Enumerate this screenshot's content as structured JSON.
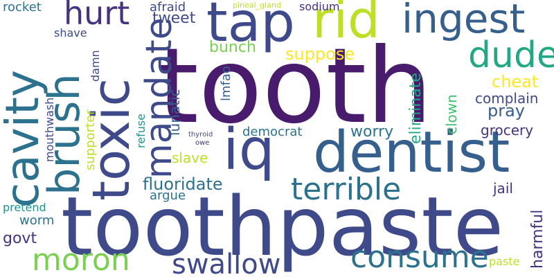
{
  "palette": {
    "dark_purple": "#481b6d",
    "indigo": "#46327e",
    "slate_blue": "#3e4a89",
    "steel_blue": "#355f8d",
    "teal_blue": "#2c728e",
    "teal": "#21918c",
    "sea_green": "#22a884",
    "green": "#44bf70",
    "light_green": "#7ad151",
    "lime": "#bddf26",
    "yellow": "#fde725"
  },
  "words": [
    {
      "text": "tooth",
      "color": "#481b6d"
    },
    {
      "text": "toothpaste",
      "color": "#3e4a89"
    },
    {
      "text": "iq",
      "color": "#3e4a89"
    },
    {
      "text": "dentist",
      "color": "#355f8d"
    },
    {
      "text": "tap",
      "color": "#3e4a89"
    },
    {
      "text": "rid",
      "color": "#bddf26"
    },
    {
      "text": "ingest",
      "color": "#355f8d"
    },
    {
      "text": "cavity",
      "color": "#2c728e"
    },
    {
      "text": "brush",
      "color": "#2c728e"
    },
    {
      "text": "toxic",
      "color": "#3e4a89"
    },
    {
      "text": "mandate",
      "color": "#3e4a89"
    },
    {
      "text": "hurt",
      "color": "#46327e"
    },
    {
      "text": "dude",
      "color": "#22a884"
    },
    {
      "text": "terrible",
      "color": "#2c728e"
    },
    {
      "text": "consume",
      "color": "#2c728e"
    },
    {
      "text": "moron",
      "color": "#7ad151"
    },
    {
      "text": "swallow",
      "color": "#3e4a89"
    },
    {
      "text": "fluoridate",
      "color": "#2c728e"
    },
    {
      "text": "tweet",
      "color": "#3e4a89"
    },
    {
      "text": "afraid",
      "color": "#3e4a89"
    },
    {
      "text": "bunch",
      "color": "#7ad151"
    },
    {
      "text": "suppose",
      "color": "#fde725"
    },
    {
      "text": "cheat",
      "color": "#fde725"
    },
    {
      "text": "complain",
      "color": "#3e4a89"
    },
    {
      "text": "pray",
      "color": "#355f8d"
    },
    {
      "text": "grocery",
      "color": "#46327e"
    },
    {
      "text": "worry",
      "color": "#2c728e"
    },
    {
      "text": "democrat",
      "color": "#2c728e"
    },
    {
      "text": "eliminate",
      "color": "#22a884"
    },
    {
      "text": "clown",
      "color": "#44bf70"
    },
    {
      "text": "lmfao",
      "color": "#355f8d"
    },
    {
      "text": "lunatic",
      "color": "#355f8d"
    },
    {
      "text": "slave",
      "color": "#bddf26"
    },
    {
      "text": "argue",
      "color": "#2c728e"
    },
    {
      "text": "jail",
      "color": "#46327e"
    },
    {
      "text": "harmful",
      "color": "#46327e"
    },
    {
      "text": "paste",
      "color": "#bddf26"
    },
    {
      "text": "govt",
      "color": "#46327e"
    },
    {
      "text": "worm",
      "color": "#2c728e"
    },
    {
      "text": "pretend",
      "color": "#21918c"
    },
    {
      "text": "rocket",
      "color": "#2c728e"
    },
    {
      "text": "shave",
      "color": "#3e4a89"
    },
    {
      "text": "damn",
      "color": "#3e4a89"
    },
    {
      "text": "mouthwash",
      "color": "#3e4a89"
    },
    {
      "text": "supporter",
      "color": "#bddf26"
    },
    {
      "text": "refuse",
      "color": "#21918c"
    },
    {
      "text": "thyroid",
      "color": "#3e4a89"
    },
    {
      "text": "owe",
      "color": "#46327e"
    },
    {
      "text": "sodium",
      "color": "#46327e"
    },
    {
      "text": "pineal_gland",
      "color": "#bddf26"
    }
  ]
}
